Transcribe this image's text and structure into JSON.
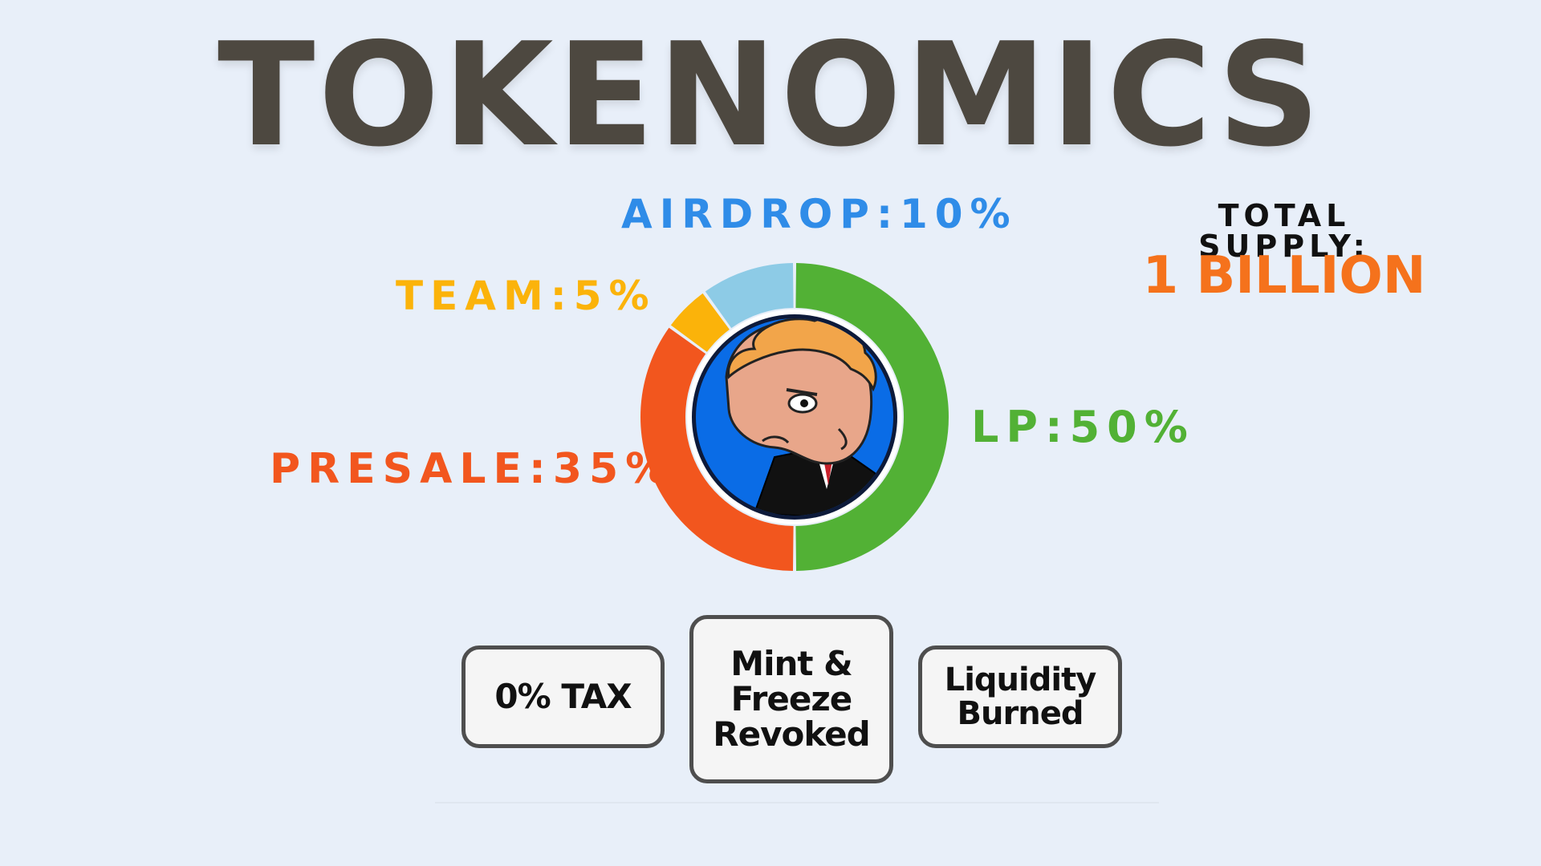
{
  "title": "TOKENOMICS",
  "total_supply": {
    "label": "TOTAL SUPPLY:",
    "value": "1 BILLION"
  },
  "distribution_labels": {
    "airdrop": "AIRDROP:10%",
    "team": "TEAM:5%",
    "lp": "LP:50%",
    "presale": "PRESALE:35%"
  },
  "colors": {
    "lp": "#52b135",
    "presale": "#f2561e",
    "team": "#fbb30a",
    "airdrop": "#8dcbe6",
    "airdrop_text": "#2f8ce8",
    "supply_value": "#f5721c",
    "title": "#4d4840",
    "background": "#e8eff9"
  },
  "chart_data": {
    "type": "pie",
    "donut": true,
    "categories": [
      "LP",
      "PRESALE",
      "TEAM",
      "AIRDROP"
    ],
    "values": [
      50,
      35,
      5,
      10
    ],
    "unit": "%",
    "center_image": "cartoon-character-avatar"
  },
  "features": [
    {
      "text": "0% TAX"
    },
    {
      "text": "Mint &\nFreeze\nRevoked"
    },
    {
      "text": "Liquidity\nBurned"
    }
  ]
}
